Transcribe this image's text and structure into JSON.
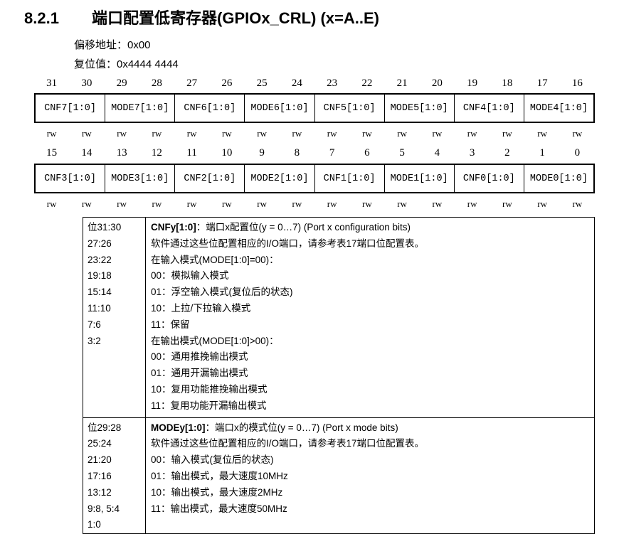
{
  "heading": {
    "number": "8.2.1",
    "title": "端口配置低寄存器(GPIOx_CRL) (x=A..E)"
  },
  "offset": "偏移地址：0x00",
  "reset": "复位值：0x4444 4444",
  "upper": {
    "bits": [
      "31",
      "30",
      "29",
      "28",
      "27",
      "26",
      "25",
      "24",
      "23",
      "22",
      "21",
      "20",
      "19",
      "18",
      "17",
      "16"
    ],
    "fields": [
      "CNF7[1:0]",
      "MODE7[1:0]",
      "CNF6[1:0]",
      "MODE6[1:0]",
      "CNF5[1:0]",
      "MODE5[1:0]",
      "CNF4[1:0]",
      "MODE4[1:0]"
    ]
  },
  "lower": {
    "bits": [
      "15",
      "14",
      "13",
      "12",
      "11",
      "10",
      "9",
      "8",
      "7",
      "6",
      "5",
      "4",
      "3",
      "2",
      "1",
      "0"
    ],
    "fields": [
      "CNF3[1:0]",
      "MODE3[1:0]",
      "CNF2[1:0]",
      "MODE2[1:0]",
      "CNF1[1:0]",
      "MODE1[1:0]",
      "CNF0[1:0]",
      "MODE0[1:0]"
    ]
  },
  "access": "rw",
  "desc": [
    {
      "bits": [
        "位31:30",
        "27:26",
        "23:22",
        "19:18",
        "15:14",
        "11:10",
        "7:6",
        "3:2"
      ],
      "name": "CNFy[1:0]",
      "title": "：端口x配置位(y = 0…7) (Port x configuration bits)",
      "lines": [
        "软件通过这些位配置相应的I/O端口，请参考表17端口位配置表。",
        "在输入模式(MODE[1:0]=00)：",
        "00：模拟输入模式",
        "01：浮空输入模式(复位后的状态)",
        "10：上拉/下拉输入模式",
        "11：保留",
        "在输出模式(MODE[1:0]>00)：",
        "00：通用推挽输出模式",
        "01：通用开漏输出模式",
        "10：复用功能推挽输出模式",
        "11：复用功能开漏输出模式"
      ]
    },
    {
      "bits": [
        "位29:28",
        "25:24",
        "21:20",
        "17:16",
        "13:12",
        "9:8, 5:4",
        "1:0"
      ],
      "name": "MODEy[1:0]",
      "title": "：端口x的模式位(y = 0…7) (Port x mode bits)",
      "lines": [
        "软件通过这些位配置相应的I/O端口，请参考表17端口位配置表。",
        "00：输入模式(复位后的状态)",
        "01：输出模式，最大速度10MHz",
        "10：输出模式，最大速度2MHz",
        "11：输出模式，最大速度50MHz"
      ]
    }
  ]
}
